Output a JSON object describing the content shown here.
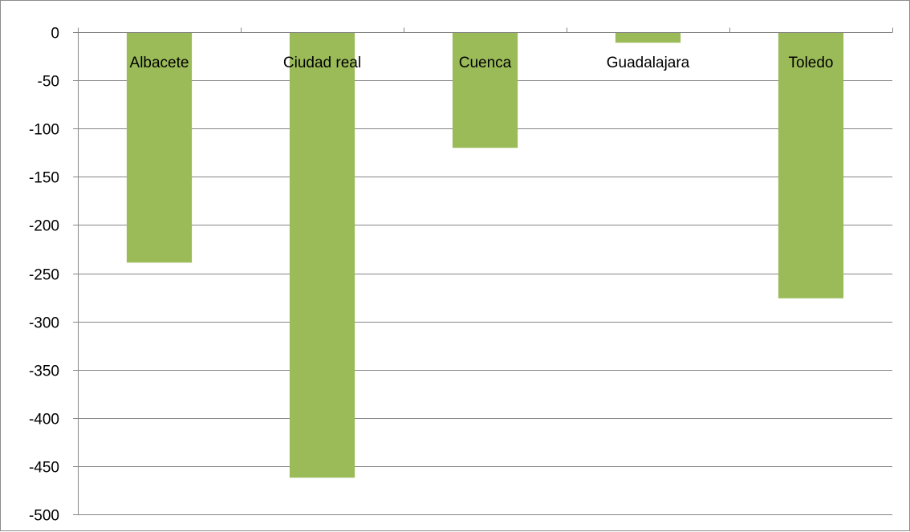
{
  "chart_data": {
    "type": "bar",
    "categories": [
      "Albacete",
      "Ciudad real",
      "Cuenca",
      "Guadalajara",
      "Toledo"
    ],
    "values": [
      -239,
      -462,
      -120,
      -11,
      -276
    ],
    "ylim": [
      -500,
      0
    ],
    "yticks": [
      0,
      -50,
      -100,
      -150,
      -200,
      -250,
      -300,
      -350,
      -400,
      -450,
      -500
    ],
    "grid": true,
    "bar_color": "#9bbb59",
    "grid_color": "#868686",
    "axis_color": "#868686",
    "category_label_position": "top"
  }
}
